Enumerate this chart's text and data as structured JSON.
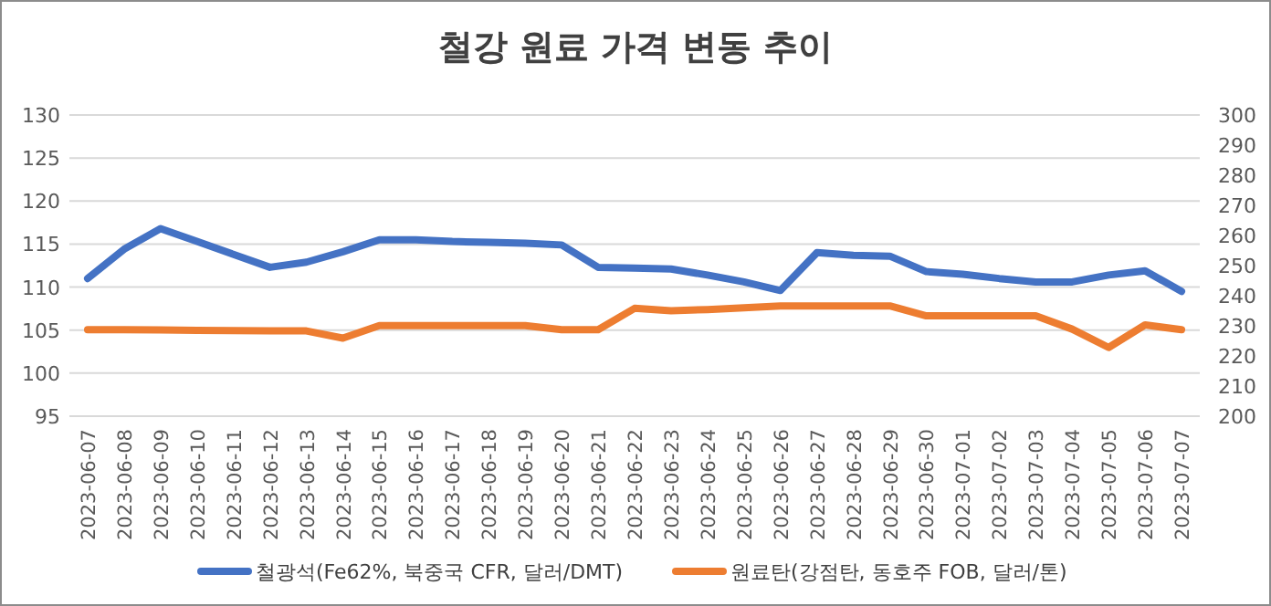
{
  "chart_data": {
    "type": "line",
    "title": "철강 원료 가격 변동 추이",
    "categories": [
      "2023-06-07",
      "2023-06-08",
      "2023-06-09",
      "2023-06-10",
      "2023-06-11",
      "2023-06-12",
      "2023-06-13",
      "2023-06-14",
      "2023-06-15",
      "2023-06-16",
      "2023-06-17",
      "2023-06-18",
      "2023-06-19",
      "2023-06-20",
      "2023-06-21",
      "2023-06-22",
      "2023-06-23",
      "2023-06-24",
      "2023-06-25",
      "2023-06-26",
      "2023-06-27",
      "2023-06-28",
      "2023-06-29",
      "2023-06-30",
      "2023-07-01",
      "2023-07-02",
      "2023-07-03",
      "2023-07-04",
      "2023-07-05",
      "2023-07-06",
      "2023-07-07"
    ],
    "series": [
      {
        "name": "철광석(Fe62%, 북중국 CFR, 달러/DMT)",
        "color": "#4472c4",
        "values": [
          111.0,
          114.4,
          116.8,
          115.3,
          113.8,
          112.3,
          112.9,
          114.1,
          115.5,
          115.5,
          115.3,
          115.2,
          115.1,
          114.9,
          112.3,
          112.2,
          112.1,
          111.4,
          110.6,
          109.6,
          114.0,
          113.7,
          113.6,
          111.8,
          111.5,
          111.0,
          110.6,
          110.6,
          111.4,
          111.9,
          109.5
        ]
      },
      {
        "name": "원료탄(강점탄, 동호주 FOB, 달러/톤)",
        "color": "#ed7d31",
        "axis": "y2",
        "values": [
          228.7,
          228.7,
          228.6,
          228.5,
          228.4,
          228.3,
          228.3,
          225.9,
          230.1,
          230.1,
          230.1,
          230.1,
          230.1,
          228.7,
          228.7,
          235.8,
          235.0,
          235.4,
          236.0,
          236.6,
          236.6,
          236.6,
          236.6,
          233.3,
          233.3,
          233.3,
          233.3,
          228.9,
          222.8,
          230.3,
          228.7
        ]
      }
    ],
    "ylim": [
      95,
      130
    ],
    "yticks": [
      95,
      100,
      105,
      110,
      115,
      120,
      125,
      130
    ],
    "y2lim": [
      200,
      300
    ],
    "y2ticks": [
      200,
      210,
      220,
      230,
      240,
      250,
      260,
      270,
      280,
      290,
      300
    ],
    "grid": "y",
    "legend": "bottom",
    "marker": "none",
    "line_style": "solid"
  }
}
